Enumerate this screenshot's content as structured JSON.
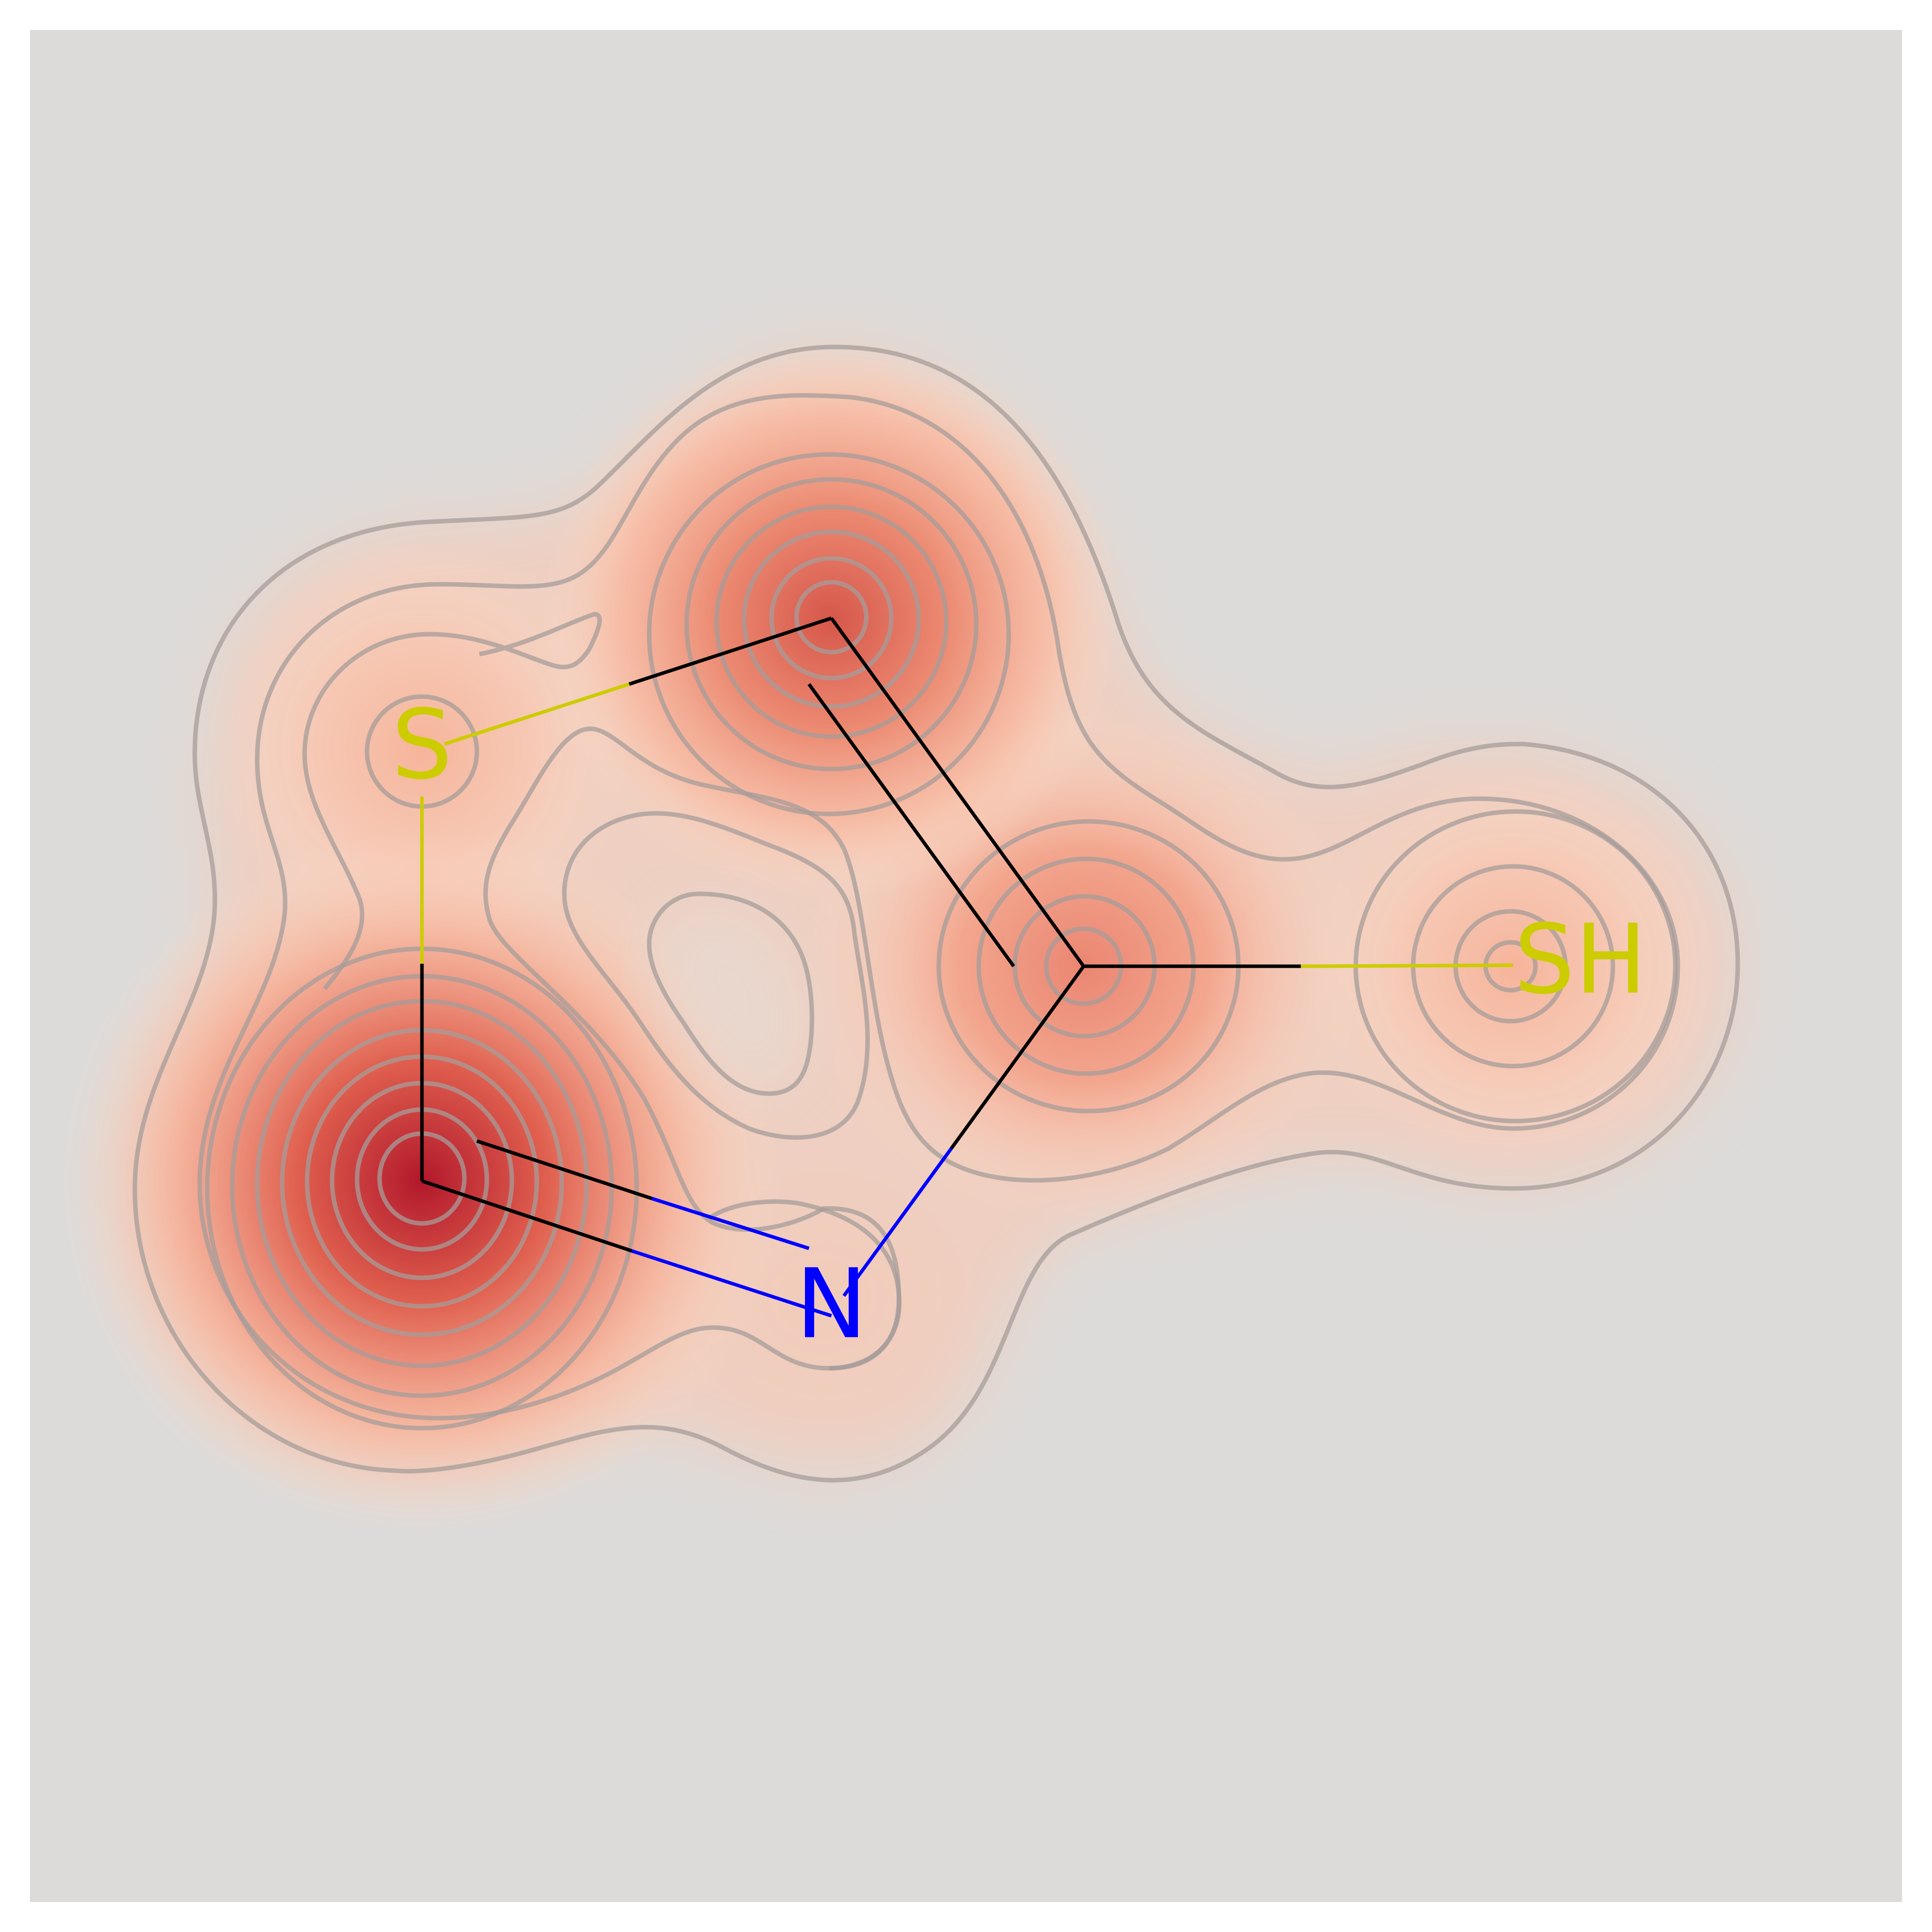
{
  "molecule": {
    "atoms": [
      {
        "id": "C1",
        "element": "C",
        "label": ""
      },
      {
        "id": "S1",
        "element": "S",
        "label": "S"
      },
      {
        "id": "C2",
        "element": "C",
        "label": ""
      },
      {
        "id": "C3",
        "element": "C",
        "label": ""
      },
      {
        "id": "S2",
        "element": "S",
        "label": "SH"
      },
      {
        "id": "N1",
        "element": "N",
        "label": "N"
      }
    ],
    "bonds": [
      {
        "from": "C1",
        "to": "S1",
        "order": 1
      },
      {
        "from": "S1",
        "to": "C2",
        "order": 1
      },
      {
        "from": "C2",
        "to": "C3",
        "order": 2
      },
      {
        "from": "C3",
        "to": "S2",
        "order": 1
      },
      {
        "from": "C3",
        "to": "N1",
        "order": 1
      },
      {
        "from": "N1",
        "to": "C1",
        "order": 2
      }
    ]
  },
  "colors": {
    "background_panel": "#dddbd9",
    "carbon": "#000000",
    "sulfur": "#cccc00",
    "nitrogen": "#0000ff",
    "heat_high": "#b2182b",
    "heat_mid": "#ef8a62",
    "heat_low": "#fddbc7",
    "contour": "#a69c99"
  }
}
